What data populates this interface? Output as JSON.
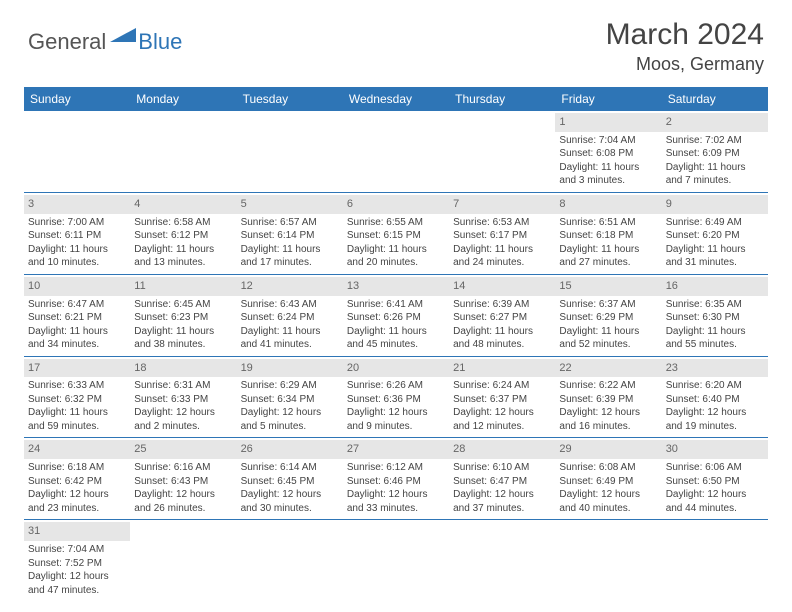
{
  "logo": {
    "part1": "General",
    "part2": "Blue"
  },
  "title": "March 2024",
  "location": "Moos, Germany",
  "colors": {
    "header_bg": "#2e75b6",
    "header_text": "#ffffff",
    "daynum_bg": "#e6e6e6",
    "daynum_text": "#666666",
    "body_text": "#444444",
    "row_border": "#2e75b6",
    "logo_gray": "#555555",
    "logo_blue": "#2e75b6"
  },
  "weekdays": [
    "Sunday",
    "Monday",
    "Tuesday",
    "Wednesday",
    "Thursday",
    "Friday",
    "Saturday"
  ],
  "weeks": [
    [
      null,
      null,
      null,
      null,
      null,
      {
        "day": "1",
        "sunrise": "Sunrise: 7:04 AM",
        "sunset": "Sunset: 6:08 PM",
        "dl1": "Daylight: 11 hours",
        "dl2": "and 3 minutes."
      },
      {
        "day": "2",
        "sunrise": "Sunrise: 7:02 AM",
        "sunset": "Sunset: 6:09 PM",
        "dl1": "Daylight: 11 hours",
        "dl2": "and 7 minutes."
      }
    ],
    [
      {
        "day": "3",
        "sunrise": "Sunrise: 7:00 AM",
        "sunset": "Sunset: 6:11 PM",
        "dl1": "Daylight: 11 hours",
        "dl2": "and 10 minutes."
      },
      {
        "day": "4",
        "sunrise": "Sunrise: 6:58 AM",
        "sunset": "Sunset: 6:12 PM",
        "dl1": "Daylight: 11 hours",
        "dl2": "and 13 minutes."
      },
      {
        "day": "5",
        "sunrise": "Sunrise: 6:57 AM",
        "sunset": "Sunset: 6:14 PM",
        "dl1": "Daylight: 11 hours",
        "dl2": "and 17 minutes."
      },
      {
        "day": "6",
        "sunrise": "Sunrise: 6:55 AM",
        "sunset": "Sunset: 6:15 PM",
        "dl1": "Daylight: 11 hours",
        "dl2": "and 20 minutes."
      },
      {
        "day": "7",
        "sunrise": "Sunrise: 6:53 AM",
        "sunset": "Sunset: 6:17 PM",
        "dl1": "Daylight: 11 hours",
        "dl2": "and 24 minutes."
      },
      {
        "day": "8",
        "sunrise": "Sunrise: 6:51 AM",
        "sunset": "Sunset: 6:18 PM",
        "dl1": "Daylight: 11 hours",
        "dl2": "and 27 minutes."
      },
      {
        "day": "9",
        "sunrise": "Sunrise: 6:49 AM",
        "sunset": "Sunset: 6:20 PM",
        "dl1": "Daylight: 11 hours",
        "dl2": "and 31 minutes."
      }
    ],
    [
      {
        "day": "10",
        "sunrise": "Sunrise: 6:47 AM",
        "sunset": "Sunset: 6:21 PM",
        "dl1": "Daylight: 11 hours",
        "dl2": "and 34 minutes."
      },
      {
        "day": "11",
        "sunrise": "Sunrise: 6:45 AM",
        "sunset": "Sunset: 6:23 PM",
        "dl1": "Daylight: 11 hours",
        "dl2": "and 38 minutes."
      },
      {
        "day": "12",
        "sunrise": "Sunrise: 6:43 AM",
        "sunset": "Sunset: 6:24 PM",
        "dl1": "Daylight: 11 hours",
        "dl2": "and 41 minutes."
      },
      {
        "day": "13",
        "sunrise": "Sunrise: 6:41 AM",
        "sunset": "Sunset: 6:26 PM",
        "dl1": "Daylight: 11 hours",
        "dl2": "and 45 minutes."
      },
      {
        "day": "14",
        "sunrise": "Sunrise: 6:39 AM",
        "sunset": "Sunset: 6:27 PM",
        "dl1": "Daylight: 11 hours",
        "dl2": "and 48 minutes."
      },
      {
        "day": "15",
        "sunrise": "Sunrise: 6:37 AM",
        "sunset": "Sunset: 6:29 PM",
        "dl1": "Daylight: 11 hours",
        "dl2": "and 52 minutes."
      },
      {
        "day": "16",
        "sunrise": "Sunrise: 6:35 AM",
        "sunset": "Sunset: 6:30 PM",
        "dl1": "Daylight: 11 hours",
        "dl2": "and 55 minutes."
      }
    ],
    [
      {
        "day": "17",
        "sunrise": "Sunrise: 6:33 AM",
        "sunset": "Sunset: 6:32 PM",
        "dl1": "Daylight: 11 hours",
        "dl2": "and 59 minutes."
      },
      {
        "day": "18",
        "sunrise": "Sunrise: 6:31 AM",
        "sunset": "Sunset: 6:33 PM",
        "dl1": "Daylight: 12 hours",
        "dl2": "and 2 minutes."
      },
      {
        "day": "19",
        "sunrise": "Sunrise: 6:29 AM",
        "sunset": "Sunset: 6:34 PM",
        "dl1": "Daylight: 12 hours",
        "dl2": "and 5 minutes."
      },
      {
        "day": "20",
        "sunrise": "Sunrise: 6:26 AM",
        "sunset": "Sunset: 6:36 PM",
        "dl1": "Daylight: 12 hours",
        "dl2": "and 9 minutes."
      },
      {
        "day": "21",
        "sunrise": "Sunrise: 6:24 AM",
        "sunset": "Sunset: 6:37 PM",
        "dl1": "Daylight: 12 hours",
        "dl2": "and 12 minutes."
      },
      {
        "day": "22",
        "sunrise": "Sunrise: 6:22 AM",
        "sunset": "Sunset: 6:39 PM",
        "dl1": "Daylight: 12 hours",
        "dl2": "and 16 minutes."
      },
      {
        "day": "23",
        "sunrise": "Sunrise: 6:20 AM",
        "sunset": "Sunset: 6:40 PM",
        "dl1": "Daylight: 12 hours",
        "dl2": "and 19 minutes."
      }
    ],
    [
      {
        "day": "24",
        "sunrise": "Sunrise: 6:18 AM",
        "sunset": "Sunset: 6:42 PM",
        "dl1": "Daylight: 12 hours",
        "dl2": "and 23 minutes."
      },
      {
        "day": "25",
        "sunrise": "Sunrise: 6:16 AM",
        "sunset": "Sunset: 6:43 PM",
        "dl1": "Daylight: 12 hours",
        "dl2": "and 26 minutes."
      },
      {
        "day": "26",
        "sunrise": "Sunrise: 6:14 AM",
        "sunset": "Sunset: 6:45 PM",
        "dl1": "Daylight: 12 hours",
        "dl2": "and 30 minutes."
      },
      {
        "day": "27",
        "sunrise": "Sunrise: 6:12 AM",
        "sunset": "Sunset: 6:46 PM",
        "dl1": "Daylight: 12 hours",
        "dl2": "and 33 minutes."
      },
      {
        "day": "28",
        "sunrise": "Sunrise: 6:10 AM",
        "sunset": "Sunset: 6:47 PM",
        "dl1": "Daylight: 12 hours",
        "dl2": "and 37 minutes."
      },
      {
        "day": "29",
        "sunrise": "Sunrise: 6:08 AM",
        "sunset": "Sunset: 6:49 PM",
        "dl1": "Daylight: 12 hours",
        "dl2": "and 40 minutes."
      },
      {
        "day": "30",
        "sunrise": "Sunrise: 6:06 AM",
        "sunset": "Sunset: 6:50 PM",
        "dl1": "Daylight: 12 hours",
        "dl2": "and 44 minutes."
      }
    ],
    [
      {
        "day": "31",
        "sunrise": "Sunrise: 7:04 AM",
        "sunset": "Sunset: 7:52 PM",
        "dl1": "Daylight: 12 hours",
        "dl2": "and 47 minutes."
      },
      null,
      null,
      null,
      null,
      null,
      null
    ]
  ]
}
